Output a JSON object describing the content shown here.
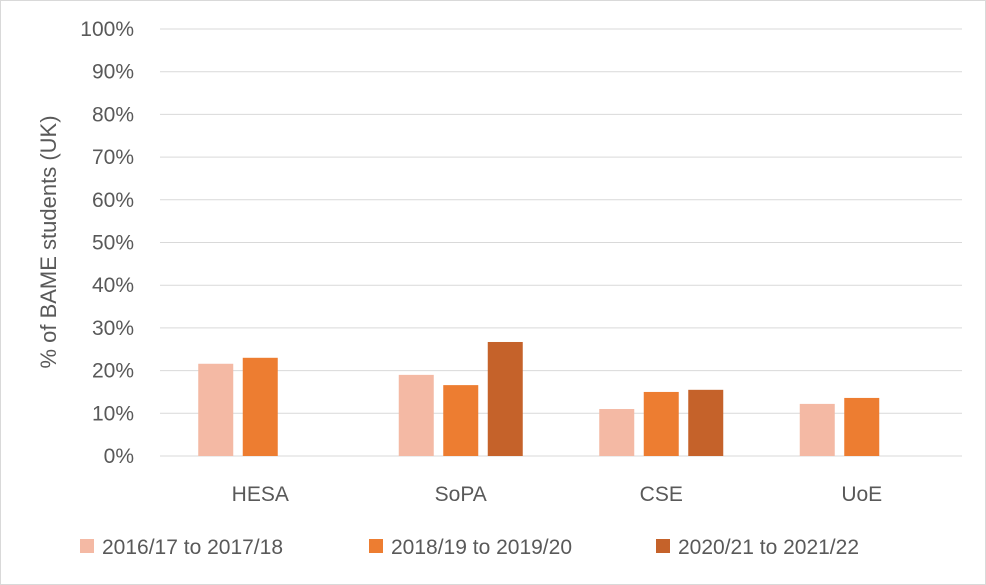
{
  "chart_data": {
    "type": "bar",
    "title": "",
    "xlabel": "",
    "ylabel": "% of BAME students (UK)",
    "categories": [
      "HESA",
      "SoPA",
      "CSE",
      "UoE"
    ],
    "ylim": [
      0,
      1
    ],
    "yticks": [
      "0%",
      "10%",
      "20%",
      "30%",
      "40%",
      "50%",
      "60%",
      "70%",
      "80%",
      "90%",
      "100%"
    ],
    "grid": true,
    "legend_position": "bottom",
    "series": [
      {
        "name": "2016/17 to 2017/18",
        "color": "#f4b9a4",
        "values": [
          0.216,
          0.19,
          0.11,
          0.122
        ]
      },
      {
        "name": "2018/19 to 2019/20",
        "color": "#ed7d31",
        "values": [
          0.23,
          0.166,
          0.15,
          0.136
        ]
      },
      {
        "name": "2020/21 to 2021/22",
        "color": "#c5622a",
        "values": [
          null,
          0.267,
          0.155,
          null
        ]
      }
    ]
  }
}
